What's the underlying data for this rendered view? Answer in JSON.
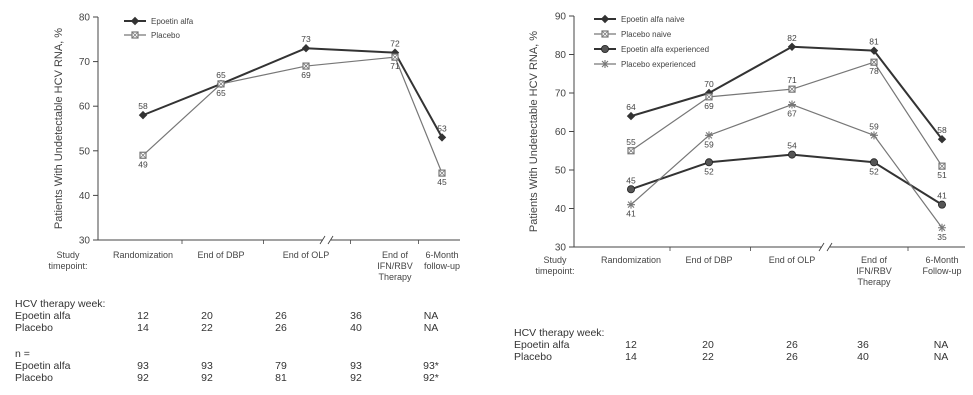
{
  "chart_data": [
    {
      "type": "line",
      "ylabel": "Patients With Undetectable HCV RNA, %",
      "ylim": [
        30,
        80
      ],
      "yticks": [
        30,
        40,
        50,
        60,
        70,
        80
      ],
      "xaxis_title": [
        "Study",
        "timepoint:"
      ],
      "categories": [
        [
          "Randomization"
        ],
        [
          "End of DBP"
        ],
        [
          "End of OLP"
        ],
        [
          "End of",
          "IFN/RBV",
          "Therapy"
        ],
        [
          "6-Month",
          "follow-up"
        ]
      ],
      "legend_position": "top-left",
      "series": [
        {
          "name": "Epoetin alfa",
          "values": [
            58,
            65,
            73,
            72,
            53
          ],
          "marker": "diamond",
          "color": "#333333",
          "width": 2.0
        },
        {
          "name": "Placebo",
          "values": [
            49,
            65,
            69,
            71,
            45
          ],
          "marker": "square",
          "color": "#777777",
          "width": 1.2
        }
      ],
      "data_labels": [
        {
          "text": "58",
          "ci": 0,
          "v": 58,
          "pos": "above"
        },
        {
          "text": "49",
          "ci": 0,
          "v": 49,
          "pos": "below"
        },
        {
          "text": "65",
          "ci": 1,
          "v": 65,
          "pos": "above"
        },
        {
          "text": "65",
          "ci": 1,
          "v": 65,
          "pos": "below"
        },
        {
          "text": "73",
          "ci": 2,
          "v": 73,
          "pos": "above"
        },
        {
          "text": "69",
          "ci": 2,
          "v": 69,
          "pos": "below"
        },
        {
          "text": "72",
          "ci": 3,
          "v": 72,
          "pos": "above"
        },
        {
          "text": "71",
          "ci": 3,
          "v": 71,
          "pos": "below"
        },
        {
          "text": "53",
          "ci": 4,
          "v": 53,
          "pos": "above"
        },
        {
          "text": "45",
          "ci": 4,
          "v": 45,
          "pos": "below"
        }
      ],
      "table": {
        "sections": [
          {
            "title": "HCV therapy week:",
            "rows": [
              {
                "label": "Epoetin alfa",
                "values": [
                  "12",
                  "20",
                  "26",
                  "36",
                  "NA"
                ]
              },
              {
                "label": "Placebo",
                "values": [
                  "14",
                  "22",
                  "26",
                  "40",
                  "NA"
                ]
              }
            ]
          },
          {
            "title": "n =",
            "rows": [
              {
                "label": "Epoetin alfa",
                "values": [
                  "93",
                  "93",
                  "79",
                  "93",
                  "93*"
                ]
              },
              {
                "label": "Placebo",
                "values": [
                  "92",
                  "92",
                  "81",
                  "92",
                  "92*"
                ]
              }
            ]
          }
        ]
      }
    },
    {
      "type": "line",
      "ylabel": "Patients With Undetectable HCV RNA, %",
      "ylim": [
        30,
        90
      ],
      "yticks": [
        30,
        40,
        50,
        60,
        70,
        80,
        90
      ],
      "xaxis_title": [
        "Study",
        "timepoint:"
      ],
      "categories": [
        [
          "Randomization"
        ],
        [
          "End of DBP"
        ],
        [
          "End of OLP"
        ],
        [
          "End of",
          "IFN/RBV",
          "Therapy"
        ],
        [
          "6-Month",
          "Follow-up"
        ]
      ],
      "legend_position": "top-left",
      "series": [
        {
          "name": "Epoetin alfa naive",
          "values": [
            64,
            70,
            82,
            81,
            58
          ],
          "marker": "diamond",
          "color": "#333333",
          "width": 2.0
        },
        {
          "name": "Placebo naive",
          "values": [
            55,
            69,
            71,
            78,
            51
          ],
          "marker": "square",
          "color": "#777777",
          "width": 1.2
        },
        {
          "name": "Epoetin alfa experienced",
          "values": [
            45,
            52,
            54,
            52,
            41
          ],
          "marker": "circle",
          "color": "#333333",
          "width": 2.0
        },
        {
          "name": "Placebo experienced",
          "values": [
            41,
            59,
            67,
            59,
            35
          ],
          "marker": "asterisk",
          "color": "#777777",
          "width": 1.2
        }
      ],
      "data_labels": [
        {
          "text": "64",
          "ci": 0,
          "v": 64,
          "pos": "above"
        },
        {
          "text": "55",
          "ci": 0,
          "v": 55,
          "pos": "above"
        },
        {
          "text": "45",
          "ci": 0,
          "v": 45,
          "pos": "above"
        },
        {
          "text": "41",
          "ci": 0,
          "v": 41,
          "pos": "below"
        },
        {
          "text": "70",
          "ci": 1,
          "v": 70,
          "pos": "above"
        },
        {
          "text": "69",
          "ci": 1,
          "v": 69,
          "pos": "below"
        },
        {
          "text": "59",
          "ci": 1,
          "v": 59,
          "pos": "below"
        },
        {
          "text": "52",
          "ci": 1,
          "v": 52,
          "pos": "below"
        },
        {
          "text": "82",
          "ci": 2,
          "v": 82,
          "pos": "above"
        },
        {
          "text": "71",
          "ci": 2,
          "v": 71,
          "pos": "above"
        },
        {
          "text": "67",
          "ci": 2,
          "v": 67,
          "pos": "below"
        },
        {
          "text": "54",
          "ci": 2,
          "v": 54,
          "pos": "above"
        },
        {
          "text": "81",
          "ci": 3,
          "v": 81,
          "pos": "above"
        },
        {
          "text": "78",
          "ci": 3,
          "v": 78,
          "pos": "below"
        },
        {
          "text": "59",
          "ci": 3,
          "v": 59,
          "pos": "above"
        },
        {
          "text": "52",
          "ci": 3,
          "v": 52,
          "pos": "below"
        },
        {
          "text": "58",
          "ci": 4,
          "v": 58,
          "pos": "above"
        },
        {
          "text": "51",
          "ci": 4,
          "v": 51,
          "pos": "below"
        },
        {
          "text": "41",
          "ci": 4,
          "v": 41,
          "pos": "above"
        },
        {
          "text": "35",
          "ci": 4,
          "v": 35,
          "pos": "below"
        }
      ],
      "table": {
        "sections": [
          {
            "title": "HCV therapy week:",
            "rows": [
              {
                "label": "Epoetin alfa",
                "values": [
                  "12",
                  "20",
                  "26",
                  "36",
                  "NA"
                ]
              },
              {
                "label": "Placebo",
                "values": [
                  "14",
                  "22",
                  "26",
                  "40",
                  "NA"
                ]
              }
            ]
          }
        ]
      }
    }
  ]
}
